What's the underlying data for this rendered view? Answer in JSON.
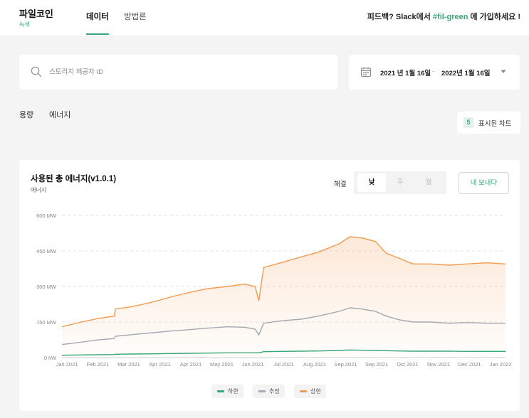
{
  "brand": {
    "name": "파일코인",
    "subtitle": "녹색"
  },
  "nav": {
    "tabs": [
      {
        "label": "데이터"
      },
      {
        "label": "방법론"
      }
    ]
  },
  "feedback": {
    "prefix": "피드백? Slack에서",
    "channel": "#fil-green",
    "suffix": "에 가입하세요 !"
  },
  "search": {
    "placeholder": "스토리지 제공자 ID",
    "value": ""
  },
  "date_range": {
    "start": "2021 년 1월 16일",
    "separator": "-",
    "end": "2022년 1월 16일"
  },
  "section_tabs": [
    {
      "label": "용량"
    },
    {
      "label": "에너지"
    }
  ],
  "shown_charts": {
    "count": "5",
    "label": "표시된 차트"
  },
  "card": {
    "title": "사용된 총 에너지(v1.0.1)",
    "subtitle": "에너지",
    "resolution_label": "해결",
    "resolution_options": [
      {
        "label": "낮"
      },
      {
        "label": "주"
      },
      {
        "label": "월"
      }
    ],
    "resolution_selected": "낮",
    "export_label": "내 보내다"
  },
  "colors": {
    "accent": "#3aa57a",
    "upper": "#f39a4e",
    "estimate": "#a4a8b0",
    "lower": "#3aa57a"
  },
  "chart_data": {
    "type": "line",
    "title": "",
    "xlabel": "",
    "ylabel": "",
    "ylim": [
      0,
      600
    ],
    "y_unit": "MW",
    "yticks": [
      "0 kW",
      "150 MW",
      "300 MW",
      "450 MW",
      "600 MW"
    ],
    "x_tick_labels": [
      "Jan 2021",
      "Feb 2021",
      "Mar 2021",
      "Apr 2021",
      "Apr 2021",
      "May 2021",
      "Jun 2021",
      "Jul 2021",
      "Aug 2021",
      "Sep 2021",
      "Sep 2021",
      "Oct 2021",
      "Nov 2021",
      "Dec 2021",
      "Jan 2022"
    ],
    "grid": true,
    "legend_position": "bottom",
    "x": [
      "2021-01-16",
      "2021-02-01",
      "2021-02-15",
      "2021-02-28",
      "2021-03-01",
      "2021-03-15",
      "2021-04-01",
      "2021-04-15",
      "2021-05-01",
      "2021-05-15",
      "2021-06-01",
      "2021-06-15",
      "2021-06-24",
      "2021-06-27",
      "2021-07-01",
      "2021-07-15",
      "2021-08-01",
      "2021-08-15",
      "2021-09-01",
      "2021-09-10",
      "2021-09-20",
      "2021-10-01",
      "2021-10-10",
      "2021-10-20",
      "2021-11-01",
      "2021-11-15",
      "2021-12-01",
      "2021-12-15",
      "2022-01-01",
      "2022-01-16"
    ],
    "series": [
      {
        "name": "하한",
        "values": [
          10,
          11,
          12,
          13,
          14,
          15,
          16,
          17,
          18,
          19,
          20,
          20,
          20,
          20,
          25,
          26,
          27,
          28,
          30,
          32,
          31,
          30,
          29,
          28,
          27,
          27,
          27,
          26,
          26,
          26
        ]
      },
      {
        "name": "추정",
        "values": [
          55,
          65,
          75,
          80,
          90,
          97,
          105,
          112,
          118,
          124,
          130,
          128,
          120,
          95,
          145,
          155,
          162,
          175,
          195,
          210,
          205,
          195,
          175,
          160,
          150,
          150,
          145,
          148,
          145,
          145
        ]
      },
      {
        "name": "상한",
        "values": [
          130,
          150,
          165,
          175,
          205,
          215,
          235,
          255,
          275,
          290,
          300,
          310,
          300,
          240,
          380,
          400,
          425,
          445,
          480,
          510,
          505,
          490,
          440,
          420,
          395,
          395,
          390,
          395,
          400,
          395
        ]
      }
    ]
  }
}
